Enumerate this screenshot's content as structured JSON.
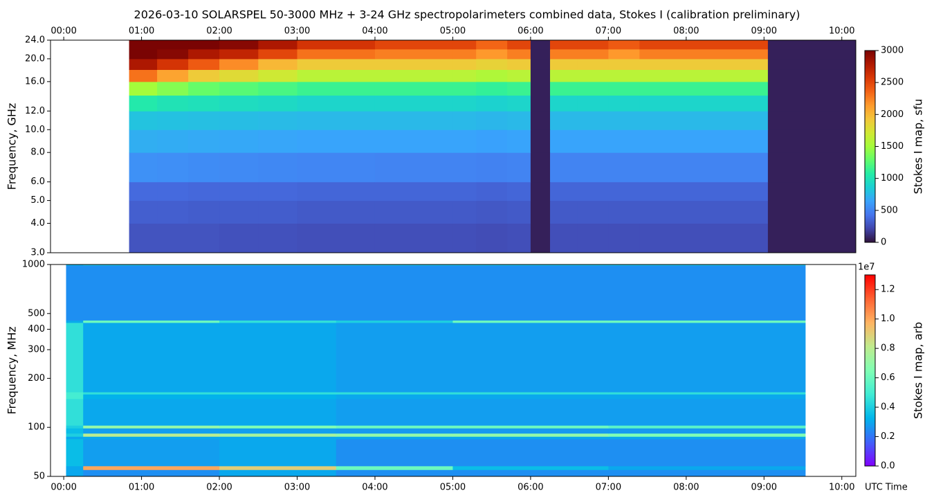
{
  "chart_data": [
    {
      "type": "heatmap",
      "title": "2026-03-10  SOLARSPEL  50-3000 MHz  +  3-24 GHz  spectropolarimeters combined data,  Stokes I  (calibration preliminary)",
      "y_label": "Frequency, GHz",
      "colorbar_label": "Stokes I map, sfu",
      "xlim": [
        -0.17,
        10.18
      ],
      "xticks": [
        {
          "value": 0,
          "label": "00:00"
        },
        {
          "value": 1,
          "label": "01:00"
        },
        {
          "value": 2,
          "label": "02:00"
        },
        {
          "value": 3,
          "label": "03:00"
        },
        {
          "value": 4,
          "label": "04:00"
        },
        {
          "value": 5,
          "label": "05:00"
        },
        {
          "value": 6,
          "label": "06:00"
        },
        {
          "value": 7,
          "label": "07:00"
        },
        {
          "value": 8,
          "label": "08:00"
        },
        {
          "value": 9,
          "label": "09:00"
        },
        {
          "value": 10,
          "label": "10:00"
        }
      ],
      "ylim": [
        3,
        24
      ],
      "ylog": true,
      "yticks": [
        {
          "value": 3,
          "label": "3.0"
        },
        {
          "value": 4,
          "label": "4.0"
        },
        {
          "value": 5,
          "label": "5.0"
        },
        {
          "value": 6,
          "label": "6.0"
        },
        {
          "value": 8,
          "label": "8.0"
        },
        {
          "value": 10,
          "label": "10.0"
        },
        {
          "value": 12,
          "label": "12.0"
        },
        {
          "value": 16,
          "label": "16.0"
        },
        {
          "value": 20,
          "label": "20.0"
        },
        {
          "value": 24,
          "label": "24.0"
        }
      ],
      "clim": [
        0,
        3000
      ],
      "cticks": [
        0,
        500,
        1000,
        1500,
        2000,
        2500,
        3000
      ],
      "colormap": [
        "#30123b",
        "#4145ab",
        "#4675ed",
        "#39a2fc",
        "#1bcfd4",
        "#24eca6",
        "#61fc6c",
        "#a4fc3b",
        "#d1e834",
        "#f3c63a",
        "#fe9b2d",
        "#f36315",
        "#d93806",
        "#b11901",
        "#7a0403"
      ],
      "xbins": [
        0.84,
        1.2,
        1.6,
        2.0,
        2.5,
        3.0,
        4.0,
        5.0,
        5.3,
        5.7,
        6.0,
        6.25,
        6.6,
        7.0,
        7.4,
        8.0,
        9.05,
        10.18
      ],
      "ybins": [
        3,
        4,
        5,
        6,
        8,
        10,
        12,
        14,
        16,
        18,
        20,
        22,
        24
      ],
      "values": [
        [
          280,
          280,
          280,
          270,
          270,
          260,
          260,
          260,
          250,
          260,
          60,
          260,
          260,
          260,
          260,
          260,
          60
        ],
        [
          330,
          330,
          320,
          320,
          320,
          310,
          310,
          310,
          300,
          310,
          60,
          310,
          310,
          310,
          310,
          310,
          60
        ],
        [
          380,
          380,
          370,
          370,
          370,
          360,
          360,
          360,
          350,
          360,
          60,
          360,
          360,
          360,
          360,
          360,
          60
        ],
        [
          560,
          550,
          540,
          530,
          520,
          510,
          500,
          500,
          490,
          500,
          60,
          500,
          500,
          500,
          500,
          500,
          60
        ],
        [
          700,
          690,
          680,
          670,
          660,
          650,
          650,
          650,
          640,
          650,
          60,
          650,
          650,
          650,
          650,
          650,
          60
        ],
        [
          800,
          790,
          780,
          770,
          760,
          750,
          750,
          750,
          740,
          750,
          60,
          750,
          750,
          750,
          750,
          750,
          60
        ],
        [
          1050,
          1000,
          980,
          950,
          930,
          900,
          900,
          900,
          880,
          900,
          60,
          900,
          900,
          900,
          900,
          900,
          60
        ],
        [
          1500,
          1400,
          1300,
          1250,
          1200,
          1150,
          1150,
          1150,
          1120,
          1150,
          60,
          1150,
          1150,
          1150,
          1150,
          1150,
          60
        ],
        [
          2300,
          2100,
          1900,
          1800,
          1700,
          1600,
          1600,
          1600,
          1550,
          1600,
          60,
          1600,
          1600,
          1600,
          1600,
          1600,
          60
        ],
        [
          2800,
          2600,
          2400,
          2200,
          2000,
          1900,
          1900,
          1900,
          1850,
          1900,
          60,
          1900,
          1900,
          1900,
          1900,
          1900,
          60
        ],
        [
          3000,
          2950,
          2800,
          2700,
          2500,
          2300,
          2250,
          2250,
          2150,
          2250,
          60,
          2250,
          2250,
          2150,
          2250,
          2250,
          60
        ],
        [
          3000,
          3000,
          3000,
          2950,
          2800,
          2600,
          2500,
          2500,
          2350,
          2500,
          60,
          2500,
          2500,
          2400,
          2500,
          2500,
          60
        ]
      ]
    },
    {
      "type": "heatmap",
      "y_label": "Frequency, MHz",
      "x_label": "UTC Time",
      "colorbar_label": "Stokes I map, arb",
      "colorbar_offset": "1e7",
      "xlim": [
        -0.17,
        10.18
      ],
      "xticks": [
        {
          "value": 0,
          "label": "00:00"
        },
        {
          "value": 1,
          "label": "01:00"
        },
        {
          "value": 2,
          "label": "02:00"
        },
        {
          "value": 3,
          "label": "03:00"
        },
        {
          "value": 4,
          "label": "04:00"
        },
        {
          "value": 5,
          "label": "05:00"
        },
        {
          "value": 6,
          "label": "06:00"
        },
        {
          "value": 7,
          "label": "07:00"
        },
        {
          "value": 8,
          "label": "08:00"
        },
        {
          "value": 9,
          "label": "09:00"
        },
        {
          "value": 10,
          "label": "10:00"
        }
      ],
      "ylim": [
        50,
        1000
      ],
      "ylog": true,
      "yticks": [
        50,
        100,
        200,
        300,
        400,
        500,
        1000
      ],
      "clim": [
        0,
        1.3
      ],
      "cticks": [
        {
          "value": 0,
          "label": "0.0"
        },
        {
          "value": 0.2,
          "label": "0.2"
        },
        {
          "value": 0.4,
          "label": "0.4"
        },
        {
          "value": 0.6,
          "label": "0.6"
        },
        {
          "value": 0.8,
          "label": "0.8"
        },
        {
          "value": 1,
          "label": "1.0"
        },
        {
          "value": 1.2,
          "label": "1.2"
        }
      ],
      "colormap": [
        "#8000ff",
        "#4062fa",
        "#00b5eb",
        "#40ecd4",
        "#80ffb4",
        "#c0eb8d",
        "#ffb462",
        "#ff6232",
        "#ff0000"
      ],
      "xbins": [
        0.03,
        0.25,
        2.0,
        3.5,
        5.0,
        7.0,
        9.53
      ],
      "ybins": [
        50,
        55,
        58,
        85,
        88,
        92,
        99,
        103,
        150,
        160,
        165,
        440,
        455,
        990,
        1000
      ],
      "values": [
        [
          0.3,
          0.25,
          0.3,
          0.25,
          0.25,
          0.25
        ],
        [
          0.3,
          1.0,
          0.9,
          0.6,
          0.35,
          0.3
        ],
        [
          0.35,
          0.28,
          0.3,
          0.25,
          0.25,
          0.25
        ],
        [
          0.3,
          0.3,
          0.3,
          0.3,
          0.3,
          0.3
        ],
        [
          0.4,
          0.8,
          0.75,
          0.7,
          0.7,
          0.65
        ],
        [
          0.35,
          0.28,
          0.28,
          0.27,
          0.27,
          0.27
        ],
        [
          0.4,
          0.7,
          0.65,
          0.6,
          0.6,
          0.55
        ],
        [
          0.45,
          0.3,
          0.3,
          0.28,
          0.28,
          0.28
        ],
        [
          0.5,
          0.32,
          0.32,
          0.3,
          0.3,
          0.3
        ],
        [
          0.5,
          0.45,
          0.45,
          0.45,
          0.45,
          0.45
        ],
        [
          0.45,
          0.3,
          0.3,
          0.28,
          0.28,
          0.28
        ],
        [
          0.3,
          0.6,
          0.45,
          0.4,
          0.6,
          0.6
        ],
        [
          0.25,
          0.25,
          0.25,
          0.25,
          0.25,
          0.25
        ],
        [
          0.35,
          0.4,
          0.4,
          0.4,
          0.4,
          0.4
        ]
      ]
    }
  ]
}
